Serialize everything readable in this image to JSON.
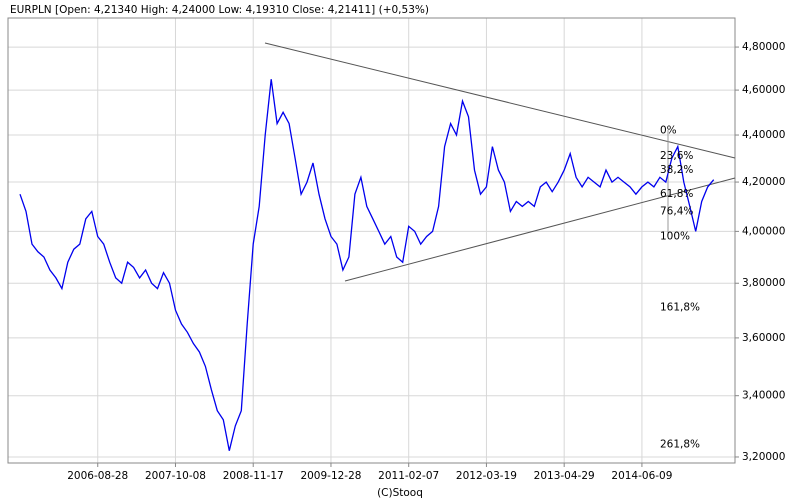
{
  "chart_data": {
    "type": "line",
    "title": "EURPLN [Open: 4,21340  High: 4,24000  Low: 4,19310  Close: 4,21411] (+0,53%)",
    "footer": "(C)Stooq",
    "log_scale": true,
    "grid": true,
    "categories": [
      null,
      null,
      null,
      null,
      null,
      null,
      null,
      null,
      null,
      null,
      null,
      null,
      null,
      "2006-08-28",
      null,
      null,
      null,
      null,
      null,
      null,
      null,
      null,
      null,
      null,
      null,
      null,
      "2007-10-08",
      null,
      null,
      null,
      null,
      null,
      null,
      null,
      null,
      null,
      null,
      null,
      null,
      "2008-11-17",
      null,
      null,
      null,
      null,
      null,
      null,
      null,
      null,
      null,
      null,
      null,
      null,
      "2009-12-28",
      null,
      null,
      null,
      null,
      null,
      null,
      null,
      null,
      null,
      null,
      null,
      null,
      "2011-02-07",
      null,
      null,
      null,
      null,
      null,
      null,
      null,
      null,
      null,
      null,
      null,
      null,
      "2012-03-19",
      null,
      null,
      null,
      null,
      null,
      null,
      null,
      null,
      null,
      null,
      null,
      null,
      "2013-04-29",
      null,
      null,
      null,
      null,
      null,
      null,
      null,
      null,
      null,
      null,
      null,
      null,
      "2014-06-09",
      null,
      null,
      null,
      null,
      null,
      null,
      null,
      null,
      null,
      null,
      null,
      null
    ],
    "series": [
      {
        "name": "EURPLN",
        "color": "#0000ee",
        "values": [
          4.15,
          4.08,
          3.95,
          3.92,
          3.9,
          3.85,
          3.82,
          3.78,
          3.88,
          3.93,
          3.95,
          4.05,
          4.08,
          3.98,
          3.95,
          3.88,
          3.82,
          3.8,
          3.88,
          3.86,
          3.82,
          3.85,
          3.8,
          3.78,
          3.84,
          3.8,
          3.7,
          3.65,
          3.62,
          3.58,
          3.55,
          3.5,
          3.42,
          3.35,
          3.32,
          3.22,
          3.3,
          3.35,
          3.65,
          3.95,
          4.1,
          4.4,
          4.65,
          4.45,
          4.5,
          4.45,
          4.3,
          4.15,
          4.2,
          4.28,
          4.15,
          4.05,
          3.98,
          3.95,
          3.85,
          3.9,
          4.15,
          4.22,
          4.1,
          4.05,
          4.0,
          3.95,
          3.98,
          3.9,
          3.88,
          4.02,
          4.0,
          3.95,
          3.98,
          4.0,
          4.1,
          4.35,
          4.45,
          4.4,
          4.55,
          4.48,
          4.25,
          4.15,
          4.18,
          4.35,
          4.25,
          4.2,
          4.08,
          4.12,
          4.1,
          4.12,
          4.1,
          4.18,
          4.2,
          4.16,
          4.2,
          4.25,
          4.32,
          4.22,
          4.18,
          4.22,
          4.2,
          4.18,
          4.25,
          4.2,
          4.22,
          4.2,
          4.18,
          4.15,
          4.18,
          4.2,
          4.18,
          4.22,
          4.2,
          4.3,
          4.35,
          4.2,
          4.1,
          4.0,
          4.12,
          4.18,
          4.21
        ]
      }
    ],
    "ylim": [
      3.181,
      4.94
    ],
    "yticks": [
      {
        "value": 3.2,
        "label": "3,20000"
      },
      {
        "value": 3.4,
        "label": "3,40000"
      },
      {
        "value": 3.6,
        "label": "3,60000"
      },
      {
        "value": 3.8,
        "label": "3,80000"
      },
      {
        "value": 4.0,
        "label": "4,00000"
      },
      {
        "value": 4.2,
        "label": "4,20000"
      },
      {
        "value": 4.4,
        "label": "4,40000"
      },
      {
        "value": 4.6,
        "label": "4,60000"
      },
      {
        "value": 4.8,
        "label": "4,80000"
      }
    ],
    "annotations": [
      {
        "text": "0%",
        "y": 4.42
      },
      {
        "text": "23,6%",
        "y": 4.31
      },
      {
        "text": "38,2%",
        "y": 4.25
      },
      {
        "text": "61,8%",
        "y": 4.15
      },
      {
        "text": "76,4%",
        "y": 4.08
      },
      {
        "text": "100%",
        "y": 3.98
      },
      {
        "text": "161,8%",
        "y": 3.71
      },
      {
        "text": "261,8%",
        "y": 3.24
      }
    ]
  }
}
